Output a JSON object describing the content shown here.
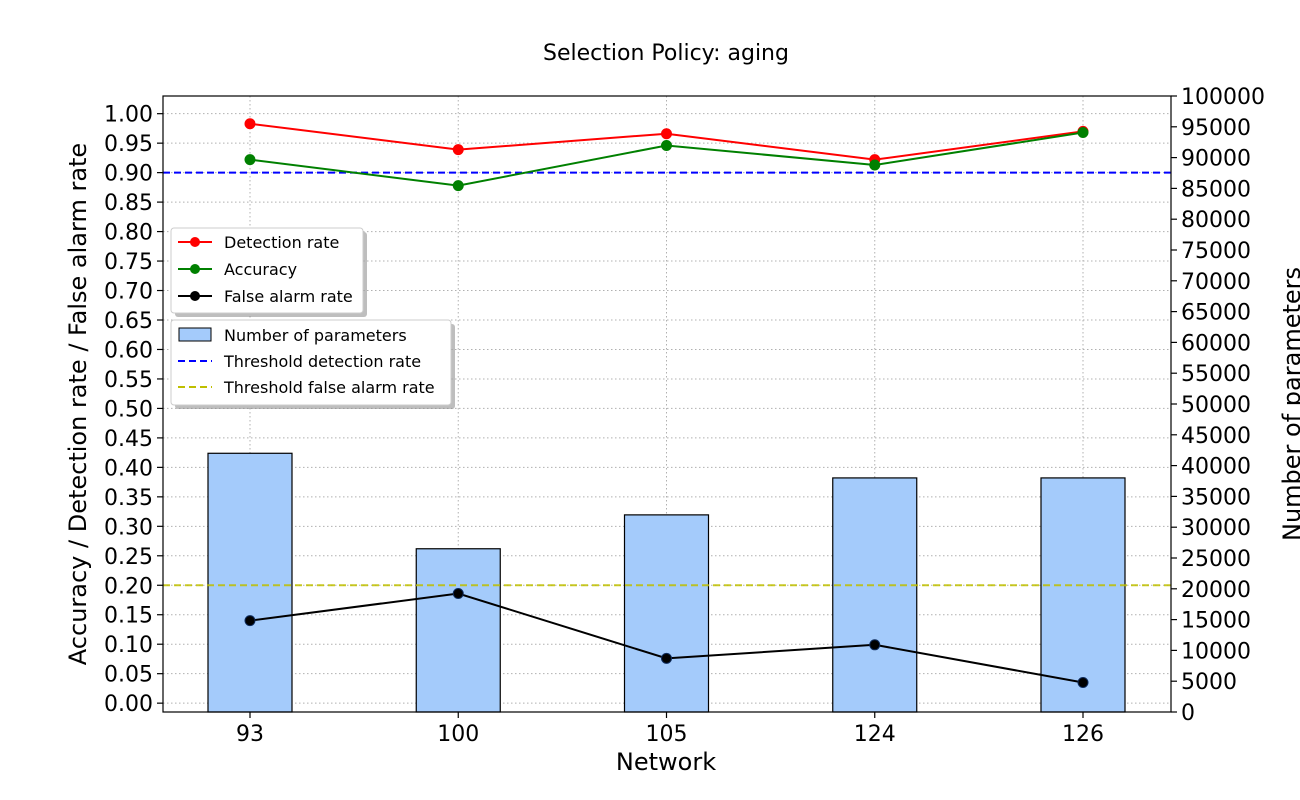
{
  "chart_data": {
    "type": "bar",
    "title": "Selection Policy: aging",
    "xlabel": "Network",
    "ylabel_left": "Accuracy / Detection rate / False alarm rate",
    "ylabel_right": "Number of parameters",
    "categories": [
      "93",
      "100",
      "105",
      "124",
      "126"
    ],
    "ylim_left": [
      -0.015,
      1.03
    ],
    "ylim_right": [
      0,
      100000
    ],
    "left_ticks": [
      "0.00",
      "0.05",
      "0.10",
      "0.15",
      "0.20",
      "0.25",
      "0.30",
      "0.35",
      "0.40",
      "0.45",
      "0.50",
      "0.55",
      "0.60",
      "0.65",
      "0.70",
      "0.75",
      "0.80",
      "0.85",
      "0.90",
      "0.95",
      "1.00"
    ],
    "right_ticks": [
      "0",
      "5000",
      "10000",
      "15000",
      "20000",
      "25000",
      "30000",
      "35000",
      "40000",
      "45000",
      "50000",
      "55000",
      "60000",
      "65000",
      "70000",
      "75000",
      "80000",
      "85000",
      "90000",
      "95000",
      "100000"
    ],
    "grid": true,
    "bars": {
      "name": "Number of parameters",
      "axis": "right",
      "color": "#a4cbfb",
      "values": [
        42000,
        26500,
        32000,
        38000,
        38000
      ]
    },
    "series": [
      {
        "name": "Detection rate",
        "axis": "left",
        "color": "#ff0000",
        "values": [
          0.983,
          0.939,
          0.966,
          0.922,
          0.97
        ]
      },
      {
        "name": "Accuracy",
        "axis": "left",
        "color": "#008000",
        "values": [
          0.922,
          0.878,
          0.946,
          0.913,
          0.968
        ]
      },
      {
        "name": "False alarm rate",
        "axis": "left",
        "color": "#000000",
        "values": [
          0.14,
          0.186,
          0.076,
          0.099,
          0.035
        ]
      }
    ],
    "thresholds": [
      {
        "name": "Threshold detection rate",
        "axis": "left",
        "value": 0.9,
        "color": "#0000ff"
      },
      {
        "name": "Threshold false alarm rate",
        "axis": "left",
        "value": 0.2,
        "color": "#bfbf00"
      }
    ],
    "legends": {
      "lines": [
        "Detection rate",
        "Accuracy",
        "False alarm rate"
      ],
      "other": [
        "Number of parameters",
        "Threshold detection rate",
        "Threshold false alarm rate"
      ],
      "placement": "upper-left"
    }
  }
}
